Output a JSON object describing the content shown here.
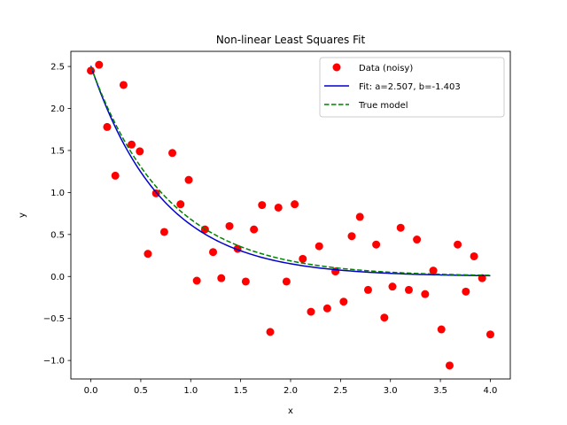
{
  "chart_data": {
    "type": "scatter",
    "title": "Non-linear Least Squares Fit",
    "xlabel": "x",
    "ylabel": "y",
    "xlim": [
      -0.2,
      4.2
    ],
    "ylim": [
      -1.22,
      2.68
    ],
    "xticks": [
      0.0,
      0.5,
      1.0,
      1.5,
      2.0,
      2.5,
      3.0,
      3.5,
      4.0
    ],
    "xtick_labels": [
      "0.0",
      "0.5",
      "1.0",
      "1.5",
      "2.0",
      "2.5",
      "3.0",
      "3.5",
      "4.0"
    ],
    "yticks": [
      -1.0,
      -0.5,
      0.0,
      0.5,
      1.0,
      1.5,
      2.0,
      2.5
    ],
    "ytick_labels": [
      "−1.0",
      "−0.5",
      "0.0",
      "0.5",
      "1.0",
      "1.5",
      "2.0",
      "2.5"
    ],
    "grid": false,
    "legend_position": "top-right",
    "series": [
      {
        "name": "Data (noisy)",
        "kind": "scatter",
        "color": "#ff0000",
        "x": [
          0.0,
          0.082,
          0.163,
          0.245,
          0.327,
          0.408,
          0.49,
          0.571,
          0.653,
          0.735,
          0.816,
          0.898,
          0.98,
          1.061,
          1.143,
          1.224,
          1.306,
          1.388,
          1.469,
          1.551,
          1.633,
          1.714,
          1.796,
          1.878,
          1.959,
          2.041,
          2.122,
          2.204,
          2.286,
          2.367,
          2.449,
          2.531,
          2.612,
          2.694,
          2.776,
          2.857,
          2.939,
          3.02,
          3.102,
          3.184,
          3.265,
          3.347,
          3.429,
          3.51,
          3.592,
          3.673,
          3.755,
          3.837,
          3.918,
          4.0
        ],
        "y": [
          2.45,
          2.52,
          1.78,
          1.2,
          2.28,
          1.57,
          1.49,
          0.27,
          0.99,
          0.53,
          1.47,
          0.86,
          1.15,
          -0.05,
          0.56,
          0.29,
          -0.02,
          0.6,
          0.33,
          -0.06,
          0.56,
          0.85,
          -0.66,
          0.82,
          -0.06,
          0.86,
          0.21,
          -0.42,
          0.36,
          -0.38,
          0.06,
          -0.3,
          0.48,
          0.71,
          -0.16,
          0.38,
          -0.49,
          -0.12,
          0.58,
          -0.16,
          0.44,
          -0.21,
          0.07,
          -0.63,
          -1.06,
          0.38,
          -0.18,
          0.24,
          -0.02,
          -0.69
        ]
      },
      {
        "name": "Fit: a=2.507, b=-1.403",
        "kind": "line",
        "color": "#0000cc",
        "style": "solid",
        "model": {
          "a": 2.507,
          "b": -1.403
        }
      },
      {
        "name": "True model",
        "kind": "line",
        "color": "#008000",
        "style": "dashed",
        "model": {
          "a": 2.5,
          "b": -1.3
        }
      }
    ]
  }
}
